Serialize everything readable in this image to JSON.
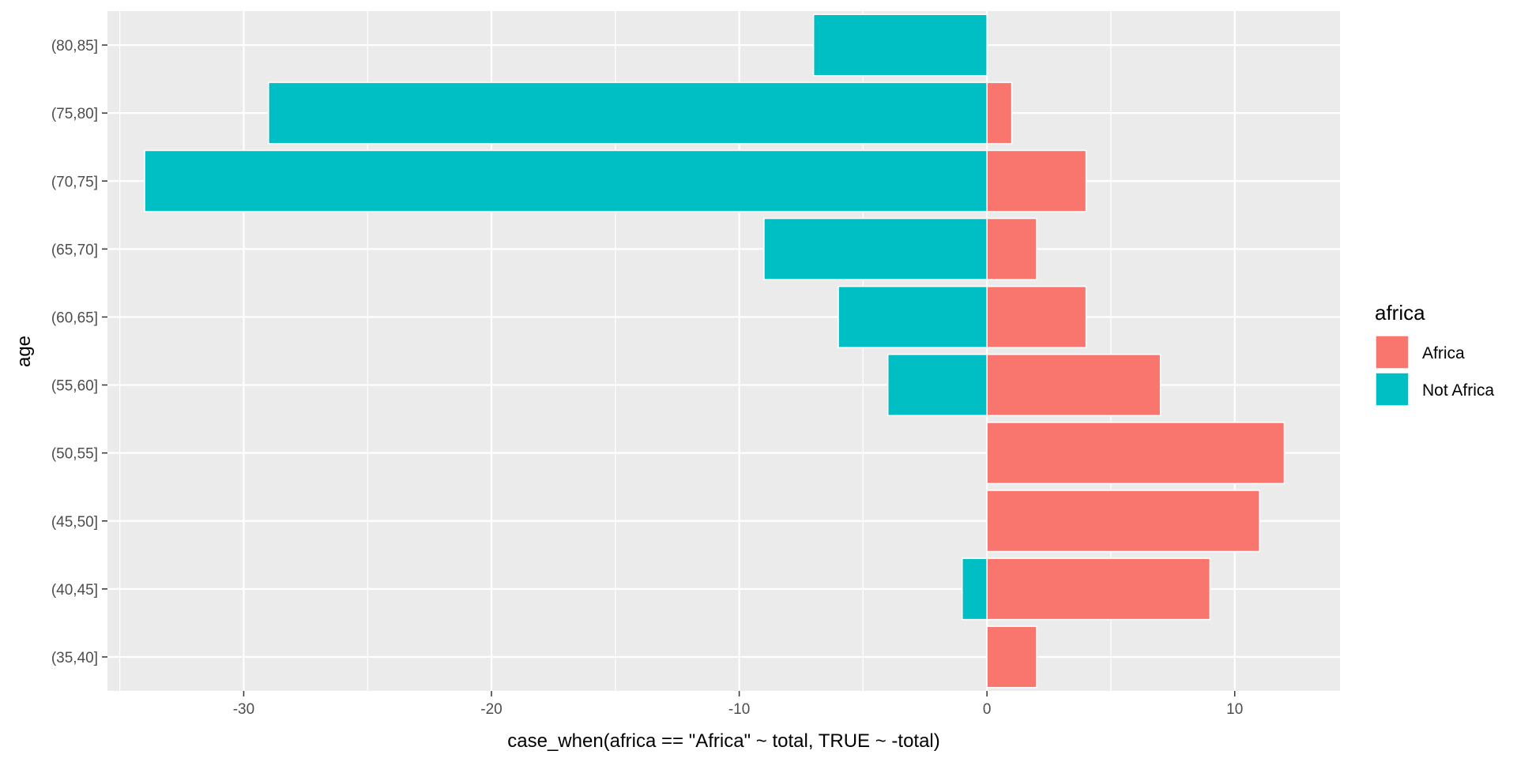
{
  "chart_data": {
    "type": "bar",
    "orientation": "horizontal",
    "title": "",
    "xlabel": "case_when(africa == \"Africa\" ~ total, TRUE ~ -total)",
    "ylabel": "age",
    "categories": [
      "(35,40]",
      "(40,45]",
      "(45,50]",
      "(50,55]",
      "(55,60]",
      "(60,65]",
      "(65,70]",
      "(70,75]",
      "(75,80]",
      "(80,85]"
    ],
    "xlim": [
      -35.5,
      14.25
    ],
    "x_ticks": [
      -30,
      -20,
      -10,
      0,
      10
    ],
    "x_tick_labels": [
      "-30",
      "-20",
      "-10",
      "0",
      "10"
    ],
    "grid": true,
    "legend": {
      "title": "africa",
      "position": "right"
    },
    "series": [
      {
        "name": "Africa",
        "color": "#F8766D",
        "values": [
          2,
          9,
          11,
          12,
          7,
          4,
          2,
          4,
          1,
          0
        ]
      },
      {
        "name": "Not Africa",
        "color": "#00BFC4",
        "values": [
          0,
          -1,
          0,
          0,
          -4,
          -6,
          -9,
          -34,
          -29,
          -7
        ]
      }
    ]
  }
}
